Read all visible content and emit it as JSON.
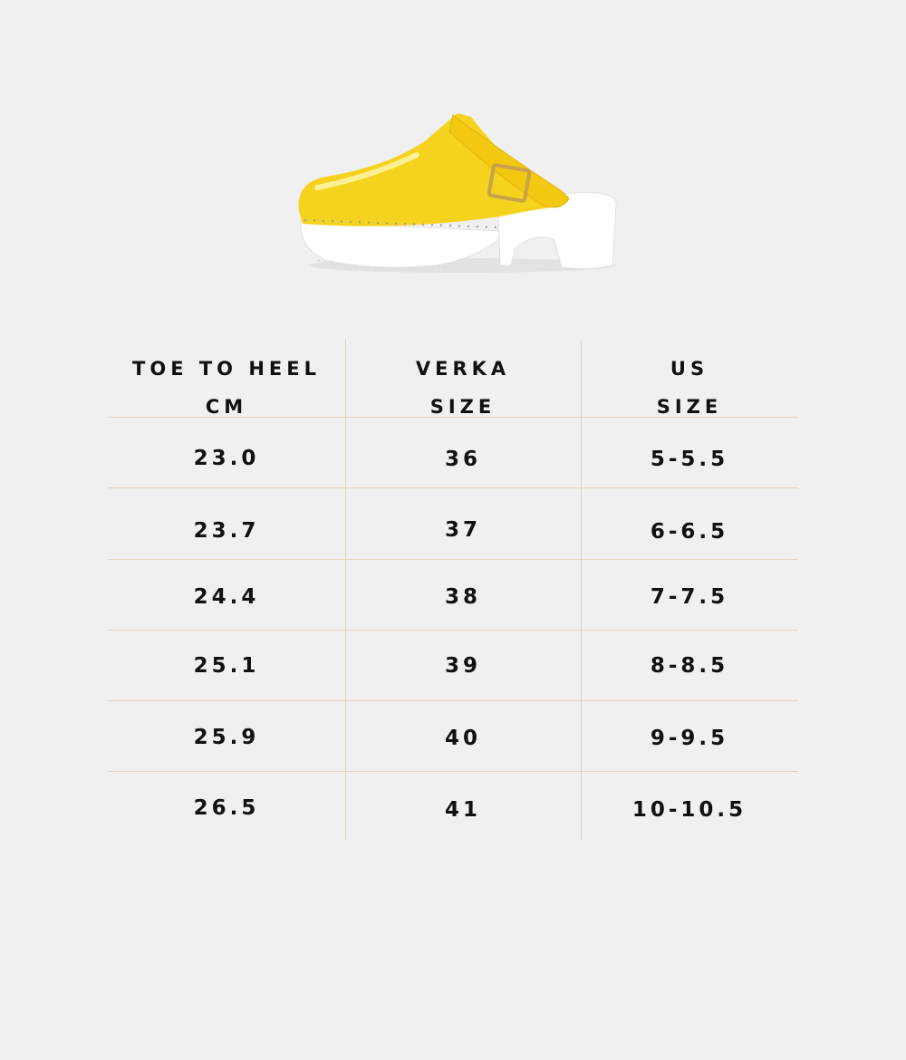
{
  "product": {
    "image_icon": "yellow-clog-shoe",
    "colors": {
      "upper": "#f5d21e",
      "sole": "#ffffff",
      "buckle": "#c9a24a",
      "background": "#f0f0f0",
      "rule": "#e8d2bc"
    }
  },
  "table": {
    "headers": [
      {
        "line1": "TOE TO HEEL",
        "line2": "CM"
      },
      {
        "line1": "VERKA",
        "line2": "SIZE"
      },
      {
        "line1": "US",
        "line2": "SIZE"
      }
    ],
    "rows": [
      {
        "cm": "23.0",
        "verka": "36",
        "us": "5-5.5"
      },
      {
        "cm": "23.7",
        "verka": "37",
        "us": "6-6.5"
      },
      {
        "cm": "24.4",
        "verka": "38",
        "us": "7-7.5"
      },
      {
        "cm": "25.1",
        "verka": "39",
        "us": "8-8.5"
      },
      {
        "cm": "25.9",
        "verka": "40",
        "us": "9-9.5"
      },
      {
        "cm": "26.5",
        "verka": "41",
        "us": "10-10.5"
      }
    ]
  }
}
